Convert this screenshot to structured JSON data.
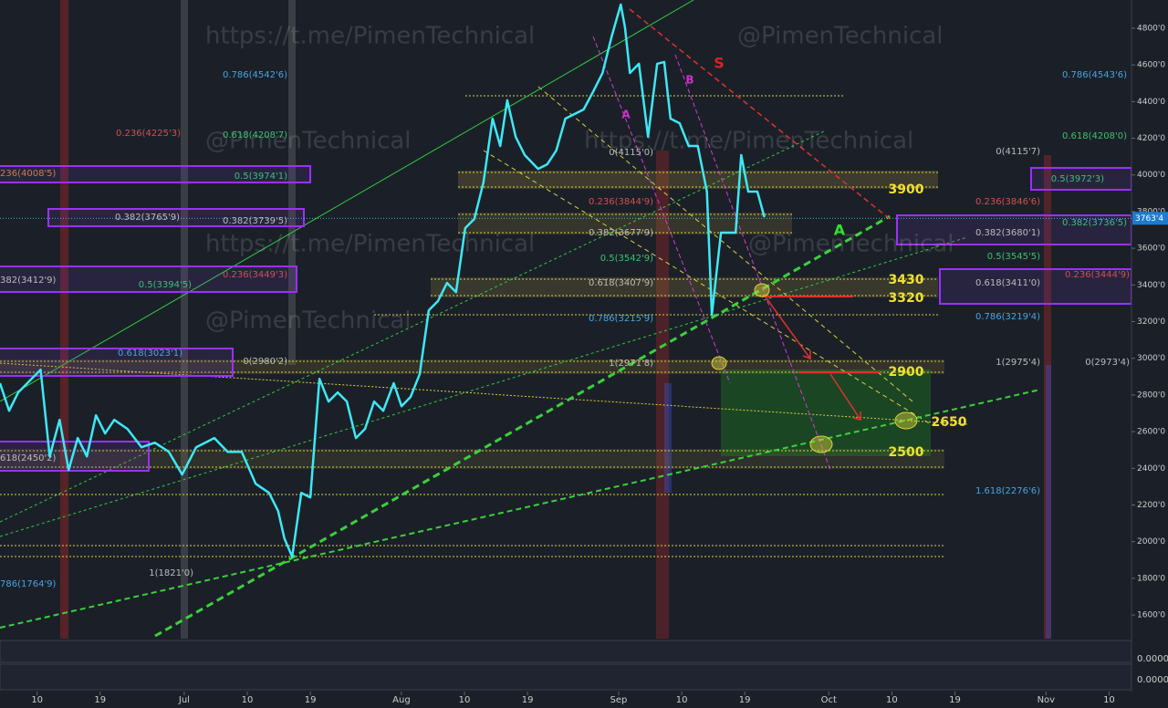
{
  "chart_data": {
    "type": "line",
    "x": [
      3.7,
      5.0,
      6.3,
      8.2,
      9.5,
      10.8,
      12.2,
      13.5,
      14.8,
      16.1,
      17.4,
      18.7,
      20.0,
      21.9,
      23.9,
      25.8,
      27.8,
      29.7,
      31.7,
      34.3,
      36.2,
      38.2,
      40.2,
      42.1,
      43.4,
      44.3,
      45.4,
      46.7,
      48.0,
      49.3,
      50.6,
      51.9,
      53.2,
      54.5,
      55.8,
      57.1,
      58.4,
      59.9,
      61.0,
      62.3,
      63.6,
      64.9,
      66.2,
      67.5,
      68.8,
      70.1,
      71.4,
      72.7,
      74.0,
      75.1,
      76.1,
      77.3,
      78.6,
      80.5,
      81.8,
      83.1,
      84.4,
      85.7,
      87.0,
      88.4,
      89.7,
      91.0,
      92.3,
      92.9,
      93.6,
      94.9,
      96.2,
      97.5,
      98.5,
      99.4,
      100.7,
      102.0,
      103.3,
      104.6,
      105.3,
      106.6,
      107.9,
      108.7,
      109.5,
      110.5,
      111.8,
      112.8
    ],
    "series": [
      {
        "color": "#3ee8f5",
        "values": [
          2864,
          2714,
          2814,
          2888,
          2938,
          2465,
          2664,
          2391,
          2565,
          2465,
          2689,
          2590,
          2664,
          2615,
          2515,
          2540,
          2490,
          2366,
          2515,
          2565,
          2490,
          2490,
          2316,
          2266,
          2167,
          2017,
          1918,
          2266,
          2241,
          2888,
          2764,
          2814,
          2764,
          2565,
          2615,
          2764,
          2714,
          2864,
          2739,
          2789,
          2913,
          3262,
          3312,
          3411,
          3361,
          3710,
          3760,
          3959,
          4307,
          4158,
          4407,
          4208,
          4108,
          4033,
          4058,
          4133,
          4307,
          4332,
          4357,
          4457,
          4556,
          4755,
          4929,
          4805,
          4556,
          4606,
          4208,
          4606,
          4616,
          4307,
          4282,
          4158,
          4158,
          3909,
          3237,
          3685,
          3685,
          3685,
          4108,
          3909,
          3909,
          3770
        ]
      }
    ],
    "xlim": [
      3.7,
      165.2
    ],
    "ylim": [
      1471,
      4954
    ],
    "xticks": [
      {
        "value": 9,
        "label": "10"
      },
      {
        "value": 18,
        "label": "19"
      },
      {
        "value": 30,
        "label": "Jul"
      },
      {
        "value": 39,
        "label": "10"
      },
      {
        "value": 48,
        "label": "19"
      },
      {
        "value": 61,
        "label": "Aug"
      },
      {
        "value": 70,
        "label": "10"
      },
      {
        "value": 79,
        "label": "19"
      },
      {
        "value": 92,
        "label": "Sep"
      },
      {
        "value": 101,
        "label": "10"
      },
      {
        "value": 110,
        "label": "19"
      },
      {
        "value": 122,
        "label": "Oct"
      },
      {
        "value": 131,
        "label": "10"
      },
      {
        "value": 140,
        "label": "19"
      },
      {
        "value": 153,
        "label": "Nov"
      },
      {
        "value": 162,
        "label": "10"
      }
    ],
    "yticks": [
      {
        "value": 1600,
        "label": "1600'0"
      },
      {
        "value": 1800,
        "label": "1800'0"
      },
      {
        "value": 2000,
        "label": "2000'0"
      },
      {
        "value": 2200,
        "label": "2200'0"
      },
      {
        "value": 2400,
        "label": "2400'0"
      },
      {
        "value": 2600,
        "label": "2600'0"
      },
      {
        "value": 2800,
        "label": "2800'0"
      },
      {
        "value": 3000,
        "label": "3000'0"
      },
      {
        "value": 3200,
        "label": "3200'0"
      },
      {
        "value": 3400,
        "label": "3400'0"
      },
      {
        "value": 3600,
        "label": "3600'0"
      },
      {
        "value": 3800,
        "label": "3800'0"
      },
      {
        "value": 4000,
        "label": "4000'0"
      },
      {
        "value": 4200,
        "label": "4200'0"
      },
      {
        "value": 4400,
        "label": "4400'0"
      },
      {
        "value": 4600,
        "label": "4600'0"
      },
      {
        "value": 4800,
        "label": "4800'0"
      }
    ],
    "current_price": {
      "value": 3763.4,
      "label": "3763'4"
    },
    "annotations": [
      "S",
      "B",
      "A",
      "A",
      "3900",
      "3430",
      "3320",
      "2900",
      "2650",
      "2500"
    ],
    "fib_labels": [
      "0.786(4542'6)",
      "0.236(4225'3)",
      "0.618(4208'7)",
      "0.5(3974'1)",
      "0.382(3739'5)",
      "236(4008'5)",
      "0.382(3765'9)",
      "382(3412'9)",
      "0.5(3394'5)",
      "0.236(3449'3)",
      "0.618(3023'1)",
      "0(2980'2)",
      "618(2450'2)",
      "786(1764'9)",
      "1(1821'0)",
      "0(4115'0)",
      "0.236(3844'9)",
      "0.382(3677'9)",
      "0.5(3542'9)",
      "0.618(3407'9)",
      "0.786(3215'9)",
      "1(2971'8)",
      "0.786(4543'6)",
      "0.618(4208'0)",
      "0(4115'7)",
      "0.5(3972'3)",
      "0.236(3846'6)",
      "0.382(3680'1)",
      "0.382(3736'5)",
      "0.5(3545'5)",
      "0.236(3444'9)",
      "0.618(3411'0)",
      "0.786(3219'4)",
      "1(2975'4)",
      "0(2973'4)",
      "1.618(2276'6)"
    ],
    "watermarks": [
      "https://t.me/PimenTechnical",
      "@PimenTechnical",
      "@PimenTechnical",
      "https://t.me/PimenTechnical",
      "https://t.me/PimenTechnical",
      "@PimenTechnical",
      "@PimenTechnical"
    ],
    "indicator_labels": [
      "0.0000",
      "0.0000"
    ]
  }
}
